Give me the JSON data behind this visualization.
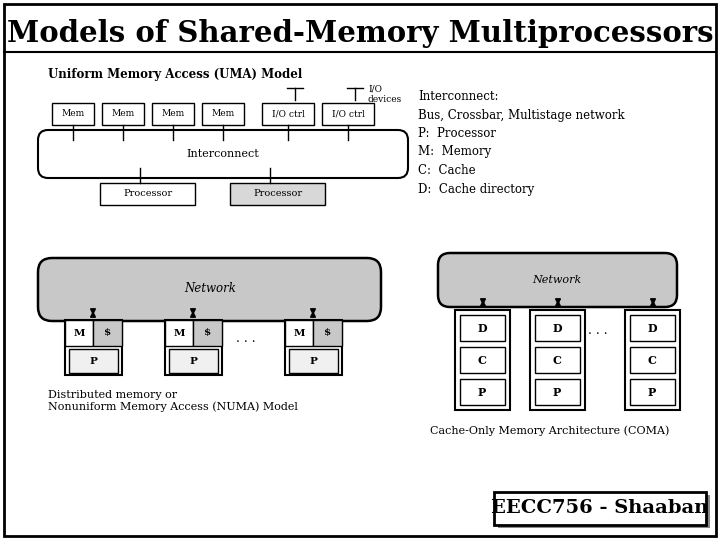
{
  "title": "Models of Shared-Memory Multiprocessors",
  "bg_color": "#ffffff",
  "interconnect_text": "Interconnect:\nBus, Crossbar, Multistage network\nP:  Processor\nM:  Memory\nC:  Cache\nD:  Cache directory",
  "uma_label": "Uniform Memory Access (UMA) Model",
  "numa_label": "Distributed memory or\nNonuniform Memory Access (NUMA) Model",
  "coma_label": "Cache-Only Memory Architecture (COMA)",
  "footer": "EECC756 - Shaaban",
  "mem_labels": [
    "Mem",
    "Mem",
    "Mem",
    "Mem",
    "I/O ctrl",
    "I/O ctrl"
  ],
  "hatch_color": "#aaaaaa",
  "network_fill": "#c8c8c8",
  "proc_fill_light": "#f0f0f0",
  "proc_fill_dark": "#d8d8d8"
}
